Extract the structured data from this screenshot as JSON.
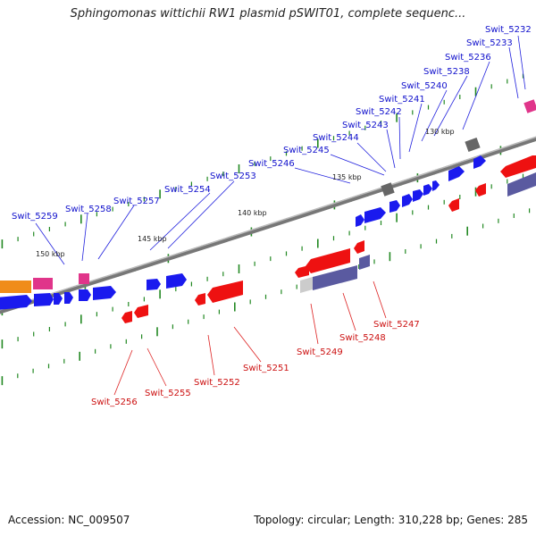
{
  "title": "Sphingomonas wittichii RW1 plasmid pSWIT01, complete sequenc...",
  "footer": {
    "accession": "Accession: NC_009507",
    "summary": "Topology: circular; Length: 310,228 bp; Genes: 285"
  },
  "kbp_labels": [
    "130 kbp",
    "135 kbp",
    "140 kbp",
    "145 kbp",
    "150 kbp"
  ],
  "outer_genes": [
    "Swit_5232",
    "Swit_5233",
    "Swit_5236",
    "Swit_5238",
    "Swit_5240",
    "Swit_5241",
    "Swit_5242",
    "Swit_5243",
    "Swit_5244",
    "Swit_5245",
    "Swit_5246",
    "Swit_5253",
    "Swit_5254",
    "Swit_5257",
    "Swit_5258",
    "Swit_5259"
  ],
  "inner_genes": [
    "Swit_5247",
    "Swit_5248",
    "Swit_5249",
    "Swit_5251",
    "Swit_5252",
    "Swit_5255",
    "Swit_5256"
  ],
  "colors": {
    "forward_cds": "#1a1aee",
    "reverse_cds": "#ee1111",
    "backbone": "#777777",
    "tick": "#228822",
    "pink": "#e0358a",
    "orange": "#f08c1a",
    "slate": "#5a5aa0",
    "gray": "#666666"
  }
}
